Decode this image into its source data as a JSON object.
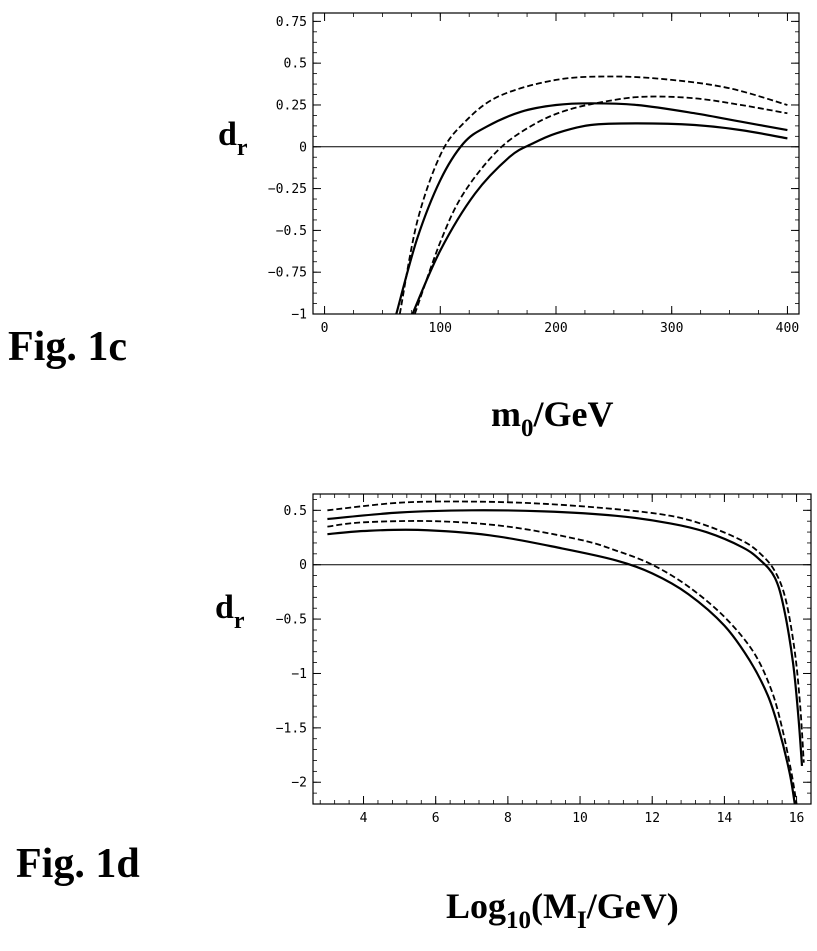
{
  "chart_data": [
    {
      "type": "line",
      "figure_label": "Fig. 1c",
      "ylabel_main": "d",
      "ylabel_sub": "r",
      "xlabel_main": "m",
      "xlabel_sub": "0",
      "xlabel_rest": "/GeV",
      "xlim": [
        -10,
        410
      ],
      "ylim": [
        -1,
        0.8
      ],
      "xticks": [
        0,
        100,
        200,
        300,
        400
      ],
      "xtick_labels": [
        "0",
        "100",
        "200",
        "300",
        "400"
      ],
      "yticks": [
        0.75,
        0.5,
        0.25,
        0,
        -0.25,
        -0.5,
        -0.75,
        -1
      ],
      "ytick_labels": [
        "0.75",
        "0.5",
        "0.25",
        "0",
        "−0.25",
        "−0.5",
        "−0.75",
        "−1"
      ],
      "minor_per_major": 4,
      "zero_line": true,
      "series": [
        {
          "style": "dashed",
          "x": [
            65,
            80,
            100,
            120,
            150,
            200,
            250,
            300,
            350,
            400
          ],
          "y": [
            -1,
            -0.45,
            -0.05,
            0.14,
            0.3,
            0.4,
            0.42,
            0.4,
            0.35,
            0.25
          ]
        },
        {
          "style": "solid",
          "x": [
            62,
            80,
            100,
            120,
            140,
            170,
            200,
            230,
            270,
            320,
            360,
            400
          ],
          "y": [
            -1,
            -0.55,
            -0.2,
            0.02,
            0.12,
            0.21,
            0.25,
            0.26,
            0.25,
            0.2,
            0.15,
            0.1
          ]
        },
        {
          "style": "dashed",
          "x": [
            78,
            100,
            120,
            150,
            180,
            210,
            250,
            280,
            320,
            360,
            400
          ],
          "y": [
            -1,
            -0.57,
            -0.28,
            -0.02,
            0.13,
            0.22,
            0.28,
            0.3,
            0.29,
            0.25,
            0.2
          ]
        },
        {
          "style": "solid",
          "x": [
            76,
            100,
            130,
            160,
            180,
            200,
            230,
            270,
            320,
            360,
            400
          ],
          "y": [
            -1,
            -0.62,
            -0.28,
            -0.06,
            0.02,
            0.08,
            0.13,
            0.14,
            0.13,
            0.1,
            0.05
          ]
        }
      ]
    },
    {
      "type": "line",
      "figure_label": "Fig. 1d",
      "ylabel_main": "d",
      "ylabel_sub": "r",
      "xlabel_main": "Log",
      "xlabel_sub": "10",
      "xlabel_rest": "(M",
      "xlabel_sub2": "I",
      "xlabel_rest2": "/GeV)",
      "xlim": [
        2.6,
        16.4
      ],
      "ylim": [
        -2.2,
        0.65
      ],
      "xticks": [
        4,
        6,
        8,
        10,
        12,
        14,
        16
      ],
      "xtick_labels": [
        "4",
        "6",
        "8",
        "10",
        "12",
        "14",
        "16"
      ],
      "yticks": [
        0.5,
        0,
        -0.5,
        -1,
        -1.5,
        -2
      ],
      "ytick_labels": [
        "0.5",
        "0",
        "−0.5",
        "−1",
        "−1.5",
        "−2"
      ],
      "minor_per_major": 5,
      "zero_line": true,
      "series": [
        {
          "style": "dashed",
          "x": [
            3,
            5,
            7,
            9,
            11,
            12.5,
            13.5,
            14.5,
            15,
            15.4,
            15.7,
            15.95,
            16.1,
            16.2
          ],
          "y": [
            0.5,
            0.57,
            0.58,
            0.56,
            0.51,
            0.45,
            0.36,
            0.22,
            0.1,
            -0.06,
            -0.32,
            -0.8,
            -1.3,
            -1.82
          ]
        },
        {
          "style": "solid",
          "x": [
            3,
            5,
            7,
            9,
            11,
            12.5,
            13.5,
            14.5,
            15,
            15.4,
            15.65,
            15.9,
            16.05,
            16.15
          ],
          "y": [
            0.42,
            0.48,
            0.5,
            0.49,
            0.45,
            0.38,
            0.3,
            0.16,
            0.04,
            -0.12,
            -0.4,
            -0.9,
            -1.4,
            -1.85
          ]
        },
        {
          "style": "dashed",
          "x": [
            3,
            4,
            6,
            8,
            10,
            11,
            12,
            13,
            14,
            14.8,
            15.3,
            15.6,
            15.85,
            16
          ],
          "y": [
            0.35,
            0.39,
            0.4,
            0.35,
            0.23,
            0.13,
            0.0,
            -0.2,
            -0.48,
            -0.8,
            -1.15,
            -1.5,
            -1.9,
            -2.2
          ]
        },
        {
          "style": "solid",
          "x": [
            3,
            4,
            5.5,
            7.5,
            9.5,
            11,
            12,
            13,
            14,
            14.7,
            15.2,
            15.5,
            15.8,
            15.95
          ],
          "y": [
            0.28,
            0.31,
            0.32,
            0.27,
            0.15,
            0.04,
            -0.08,
            -0.27,
            -0.56,
            -0.88,
            -1.2,
            -1.5,
            -1.9,
            -2.2
          ]
        }
      ]
    }
  ]
}
